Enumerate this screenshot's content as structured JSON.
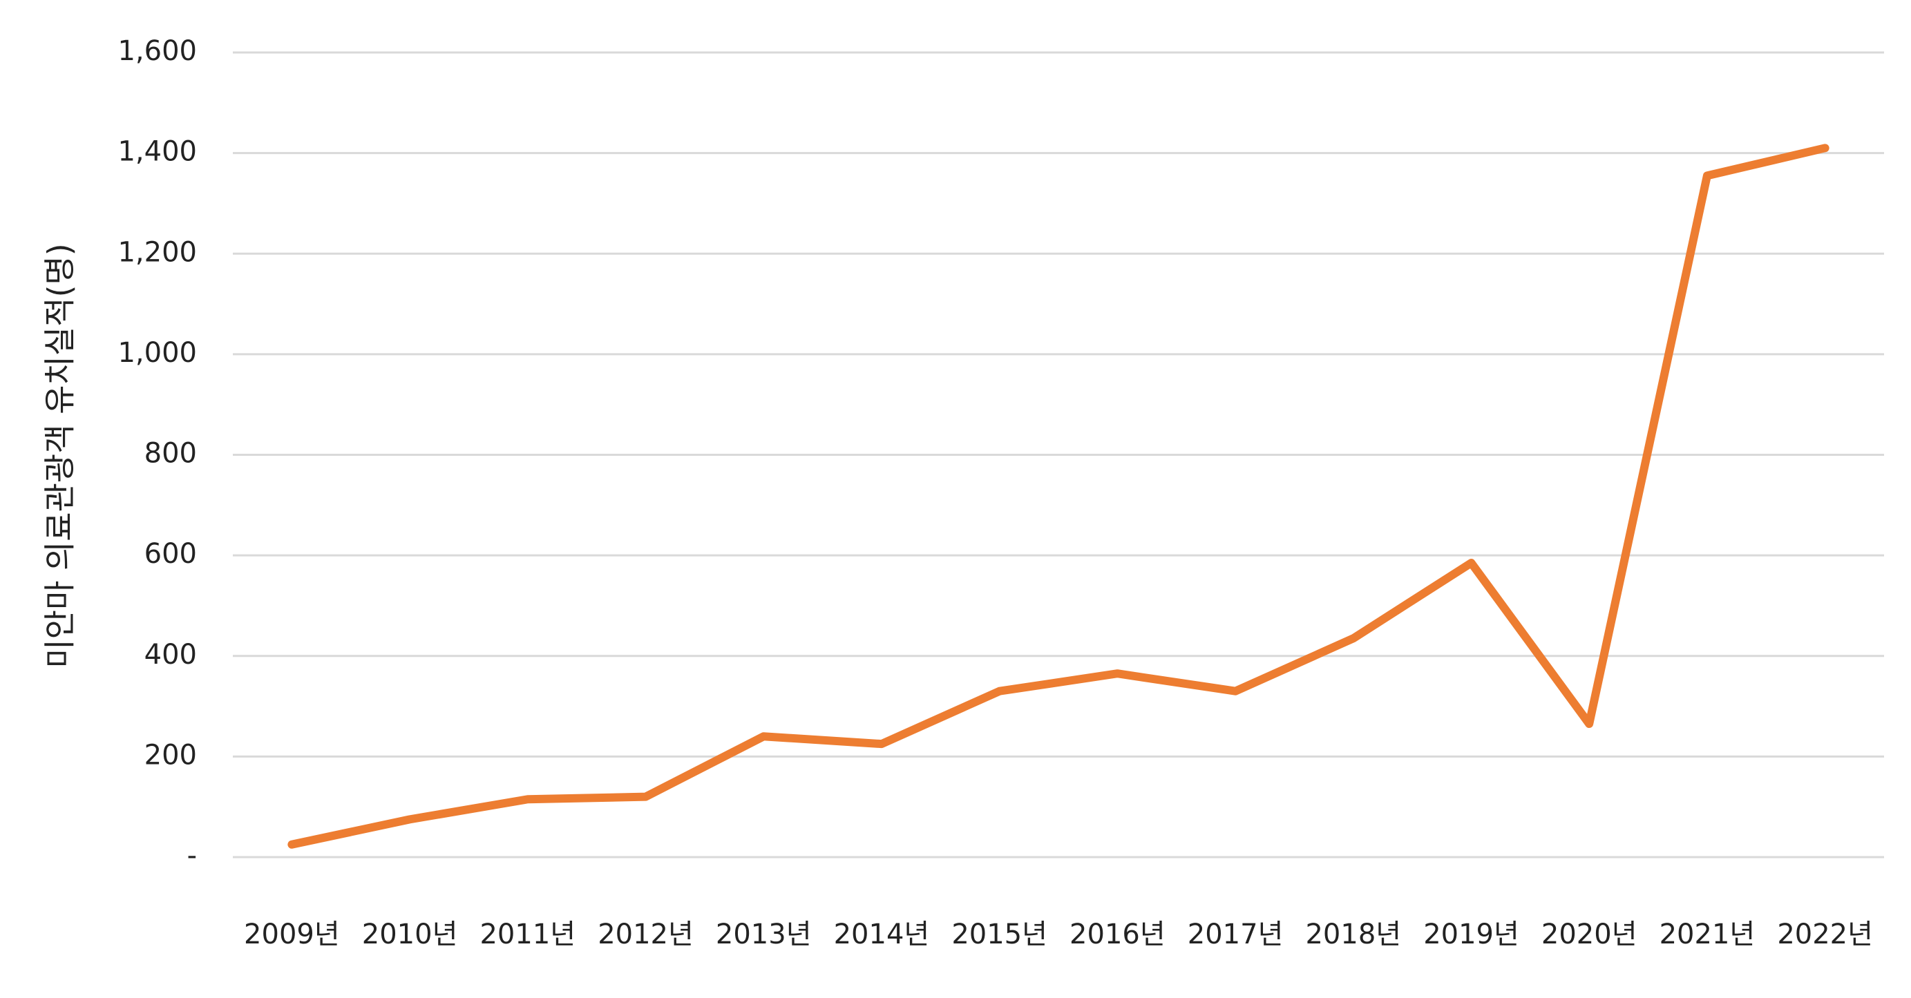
{
  "chart_data": {
    "type": "line",
    "y_axis_label": "미안마 의료관광객 유치실적(명)",
    "categories": [
      "2009년",
      "2010년",
      "2011년",
      "2012년",
      "2013년",
      "2014년",
      "2015년",
      "2016년",
      "2017년",
      "2018년",
      "2019년",
      "2020년",
      "2021년",
      "2022년"
    ],
    "series": [
      {
        "color": "#ed7d31",
        "values": [
          25,
          75,
          115,
          120,
          240,
          225,
          330,
          365,
          330,
          435,
          585,
          265,
          1355,
          1410
        ]
      }
    ],
    "ylim": [
      0,
      1600
    ],
    "yticks": [
      {
        "value": 0,
        "label": "-"
      },
      200,
      400,
      600,
      800,
      {
        "value": 1000,
        "label": "1,000"
      },
      {
        "value": 1200,
        "label": "1,200"
      },
      {
        "value": 1400,
        "label": "1,400"
      },
      {
        "value": 1600,
        "label": "1,600"
      }
    ],
    "grid": true
  }
}
